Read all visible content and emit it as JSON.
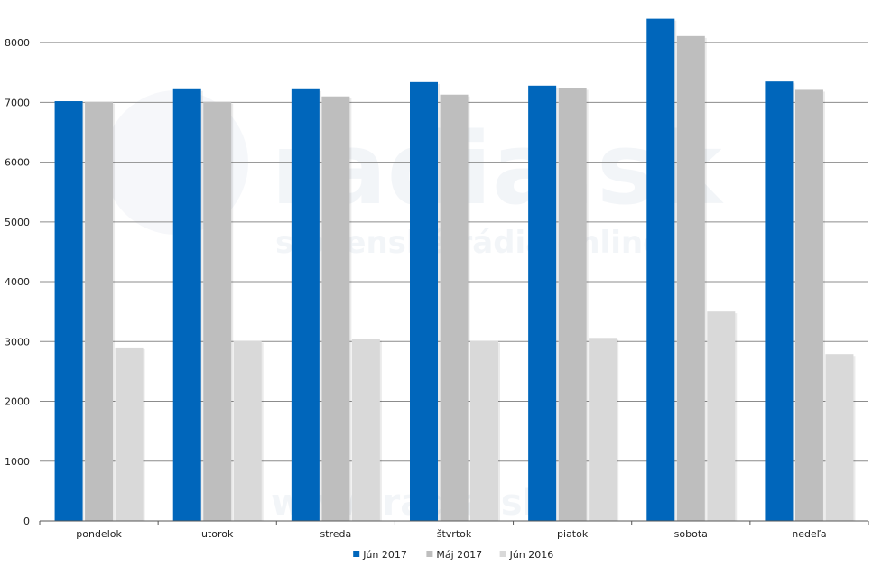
{
  "chart_data": {
    "type": "bar",
    "title": "",
    "xlabel": "",
    "ylabel": "",
    "categories": [
      "pondelok",
      "utorok",
      "streda",
      "štvrtok",
      "piatok",
      "sobota",
      "nedeľa"
    ],
    "series": [
      {
        "name": "Jún 2017",
        "color": "#0066bb",
        "values": [
          7020,
          7220,
          7220,
          7340,
          7280,
          8400,
          7350
        ]
      },
      {
        "name": "Máj 2017",
        "color": "#bebebe",
        "values": [
          7010,
          7010,
          7100,
          7130,
          7240,
          8110,
          7210
        ]
      },
      {
        "name": "Jún 2016",
        "color": "#d9d9d9",
        "values": [
          2900,
          3010,
          3040,
          3010,
          3060,
          3500,
          2790
        ]
      }
    ],
    "ylim": [
      0,
      8500
    ],
    "yticks": [
      0,
      1000,
      2000,
      3000,
      4000,
      5000,
      6000,
      7000,
      8000
    ],
    "grid": true,
    "legend": "bottom-center"
  },
  "watermark": {
    "logo": "radia.sk",
    "tagline": "slovenské rádiá online",
    "url": "www.radia.sk"
  }
}
